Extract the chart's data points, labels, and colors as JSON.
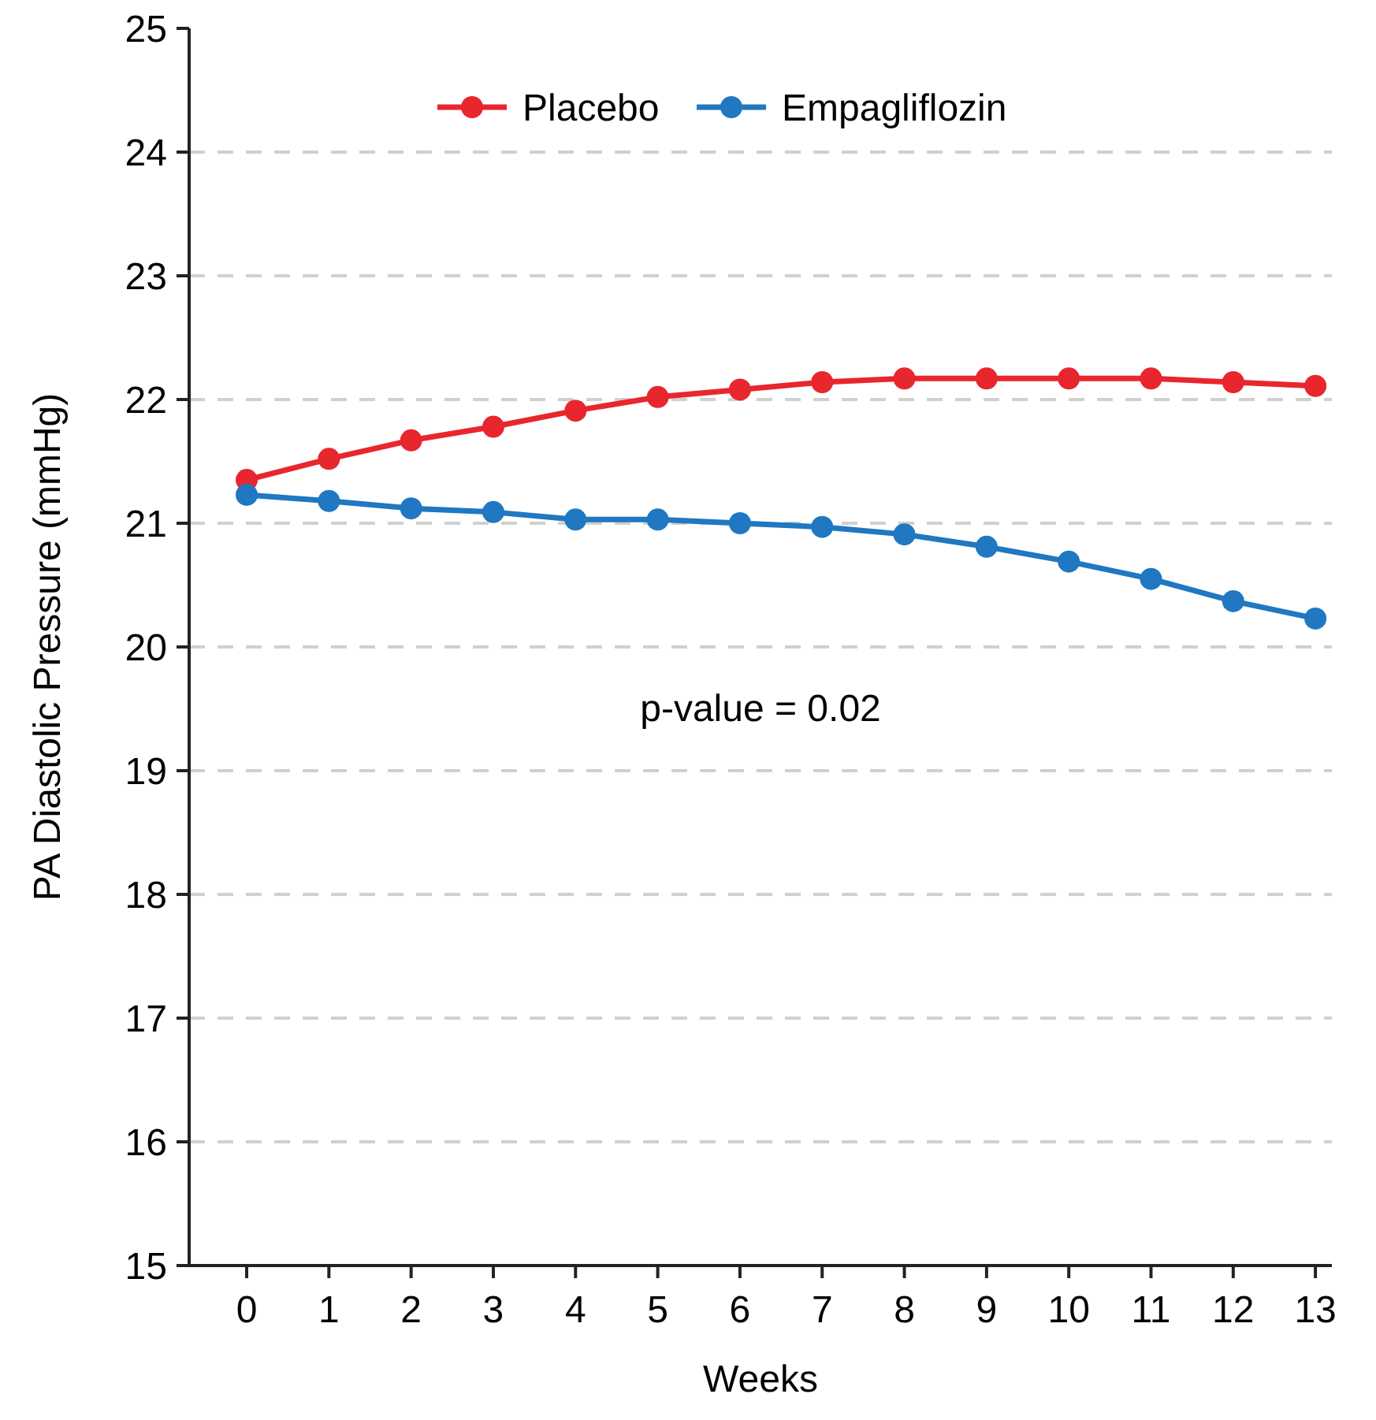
{
  "chart_data": {
    "type": "line",
    "xlabel": "Weeks",
    "ylabel": "PA Diastolic Pressure (mmHg)",
    "x": [
      0,
      1,
      2,
      3,
      4,
      5,
      6,
      7,
      8,
      9,
      10,
      11,
      12,
      13
    ],
    "xlim": [
      -0.7,
      13.2
    ],
    "xticks": [
      0,
      1,
      2,
      3,
      4,
      5,
      6,
      7,
      8,
      9,
      10,
      11,
      12,
      13
    ],
    "ylim": [
      15,
      25
    ],
    "yticks": [
      15,
      16,
      17,
      18,
      19,
      20,
      21,
      22,
      23,
      24,
      25
    ],
    "grid": "y",
    "legend": "top",
    "marker": "circle",
    "line_style": "solid",
    "annotations": [
      "p-value = 0.02"
    ],
    "series": [
      {
        "name": "Placebo",
        "color": "#e8262e",
        "values": [
          21.35,
          21.52,
          21.67,
          21.78,
          21.91,
          22.02,
          22.08,
          22.14,
          22.17,
          22.17,
          22.17,
          22.17,
          22.14,
          22.11
        ]
      },
      {
        "name": "Empagliflozin",
        "color": "#1f78c1",
        "values": [
          21.23,
          21.18,
          21.12,
          21.09,
          21.03,
          21.03,
          21.0,
          20.97,
          20.91,
          20.81,
          20.69,
          20.55,
          20.37,
          20.23
        ]
      }
    ]
  }
}
